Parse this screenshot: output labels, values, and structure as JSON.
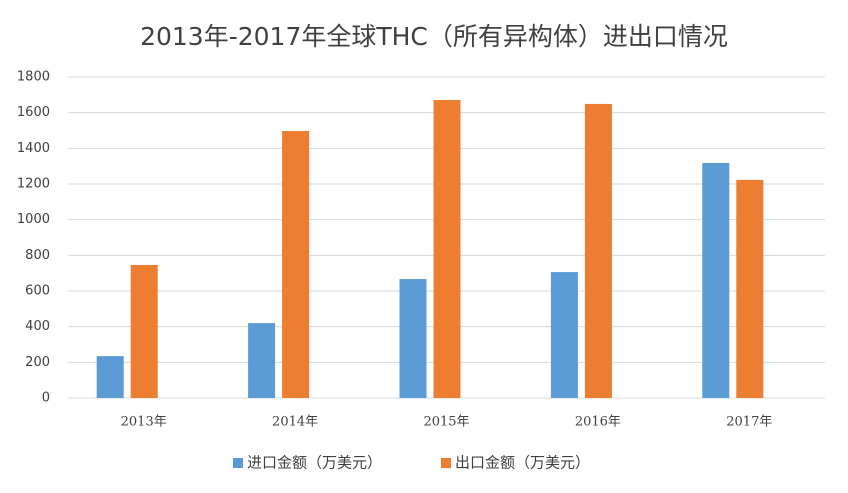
{
  "chart_data": {
    "type": "bar",
    "title": "2013年-2017年全球THC（所有异构体）进出口情况",
    "categories": [
      "2013年",
      "2014年",
      "2015年",
      "2016年",
      "2017年"
    ],
    "series": [
      {
        "name": "进口金额（万美元）",
        "color": "#5b9bd5",
        "values": [
          235,
          420,
          667,
          706,
          1318
        ]
      },
      {
        "name": "出口金额（万美元）",
        "color": "#ed7d31",
        "values": [
          746,
          1497,
          1671,
          1649,
          1223
        ]
      }
    ],
    "ylim": [
      0,
      1800
    ],
    "yticks": [
      0,
      200,
      400,
      600,
      800,
      1000,
      1200,
      1400,
      1600,
      1800
    ],
    "grid": true,
    "legend": "bottom"
  }
}
